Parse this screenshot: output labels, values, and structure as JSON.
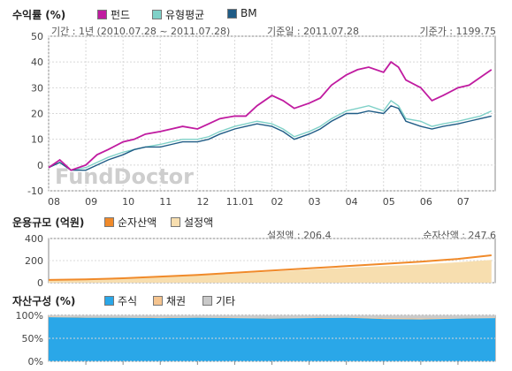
{
  "colors": {
    "fund": "#c01ba0",
    "peer_avg": "#7fd1c8",
    "bm": "#1f5c86",
    "net_assets": "#f08a2a",
    "setup_amount": "#f7deaf",
    "stocks": "#2aa7e8",
    "bonds": "#f5c48f",
    "other": "#c9c9c9"
  },
  "returns_section": {
    "title": "수익률 (%)",
    "legend": [
      "펀드",
      "유형평균",
      "BM"
    ],
    "period_label": "기간 : 1년 (2010.07.28 ~ 2011.07.28)",
    "base_date_label": "기준일 : 2011.07.28",
    "base_price_label": "기준가 : 1199.75",
    "watermark": "FundDoctor"
  },
  "aum_section": {
    "title": "운용규모 (억원)",
    "legend": [
      "순자산액",
      "설정액"
    ],
    "setup_label": "설정액 : 206.4",
    "net_label": "순자산액 : 247.6"
  },
  "asset_section": {
    "title": "자산구성 (%)",
    "legend": [
      "주식",
      "채권",
      "기타"
    ]
  },
  "chart_data": [
    {
      "type": "line",
      "title": "수익률 (%)",
      "categories": [
        "08",
        "09",
        "10",
        "11",
        "12",
        "11.01",
        "02",
        "03",
        "04",
        "05",
        "06",
        "07"
      ],
      "ylim": [
        -10,
        50
      ],
      "yticks": [
        -10,
        0,
        10,
        20,
        30,
        40,
        50
      ],
      "grid": true,
      "legend_position": "top-left",
      "x": [
        0,
        0.3,
        0.6,
        1,
        1.3,
        1.6,
        2,
        2.3,
        2.6,
        3,
        3.3,
        3.6,
        4,
        4.3,
        4.6,
        5,
        5.3,
        5.6,
        6,
        6.3,
        6.6,
        7,
        7.3,
        7.6,
        8,
        8.3,
        8.6,
        9,
        9.2,
        9.4,
        9.6,
        10,
        10.3,
        10.6,
        11,
        11.3,
        11.6,
        11.9
      ],
      "series": [
        {
          "name": "펀드",
          "values": [
            -1,
            2,
            -2,
            0,
            4,
            6,
            9,
            10,
            12,
            13,
            14,
            15,
            14,
            16,
            18,
            19,
            19,
            23,
            27,
            25,
            22,
            24,
            26,
            31,
            35,
            37,
            38,
            36,
            40,
            38,
            33,
            30,
            25,
            27,
            30,
            31,
            34,
            37
          ]
        },
        {
          "name": "유형평균",
          "values": [
            -1,
            1,
            -2,
            -1,
            1,
            3,
            5,
            6,
            7,
            8,
            9,
            10,
            10,
            11,
            13,
            15,
            16,
            17,
            16,
            14,
            11,
            13,
            15,
            18,
            21,
            22,
            23,
            21,
            25,
            23,
            18,
            17,
            15,
            16,
            17,
            18,
            19,
            21
          ]
        },
        {
          "name": "BM",
          "values": [
            -1,
            1,
            -2,
            -2,
            0,
            2,
            4,
            6,
            7,
            7,
            8,
            9,
            9,
            10,
            12,
            14,
            15,
            16,
            15,
            13,
            10,
            12,
            14,
            17,
            20,
            20,
            21,
            20,
            23,
            22,
            17,
            15,
            14,
            15,
            16,
            17,
            18,
            19
          ]
        }
      ]
    },
    {
      "type": "area",
      "title": "운용규모 (억원)",
      "ylim": [
        0,
        400
      ],
      "yticks": [
        0,
        200,
        400
      ],
      "grid": true,
      "legend_position": "top-left",
      "x": [
        0,
        1,
        2,
        3,
        4,
        5,
        6,
        7,
        8,
        9,
        10,
        11,
        11.9
      ],
      "series": [
        {
          "name": "순자산액",
          "values": [
            25,
            30,
            40,
            55,
            70,
            90,
            110,
            130,
            150,
            170,
            190,
            215,
            248
          ]
        },
        {
          "name": "설정액",
          "values": [
            24,
            28,
            38,
            50,
            65,
            82,
            100,
            118,
            135,
            150,
            165,
            185,
            206
          ]
        }
      ]
    },
    {
      "type": "area",
      "title": "자산구성 (%)",
      "ylim": [
        0,
        100
      ],
      "yticks": [
        "0%",
        "50%",
        "100%"
      ],
      "grid": true,
      "legend_position": "top-left",
      "series": [
        {
          "name": "주식",
          "values": [
            96,
            95,
            95,
            94,
            95,
            94,
            93,
            94,
            95,
            92,
            91,
            93,
            94
          ]
        },
        {
          "name": "채권",
          "values": [
            1,
            1,
            1,
            1,
            1,
            1,
            1,
            1,
            1,
            2,
            2,
            1,
            1
          ]
        },
        {
          "name": "기타",
          "values": [
            3,
            4,
            4,
            5,
            4,
            5,
            6,
            5,
            4,
            6,
            7,
            6,
            5
          ]
        }
      ]
    }
  ]
}
